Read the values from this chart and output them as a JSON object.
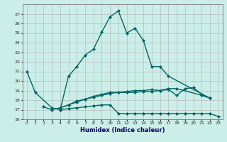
{
  "xlabel": "Humidex (Indice chaleur)",
  "ylim_min": 16,
  "ylim_max": 28,
  "ytick_min": 16,
  "ytick_max": 27,
  "bg_color": "#cceee8",
  "grid_color": "#b0b0b0",
  "line_color": "#006666",
  "line_width": 1.0,
  "marker": "D",
  "marker_size": 2.0,
  "main_x": [
    0,
    1,
    3,
    4,
    5,
    6,
    7,
    8,
    9,
    10,
    11,
    12,
    13,
    14,
    15,
    16,
    17,
    22
  ],
  "main_y": [
    21,
    18.8,
    17.2,
    17.0,
    20.5,
    21.5,
    22.7,
    23.3,
    25.1,
    26.7,
    27.3,
    25.0,
    25.5,
    24.2,
    21.5,
    21.5,
    20.5,
    18.2
  ],
  "line2_x": [
    2,
    3,
    4,
    5,
    6,
    7,
    8,
    9,
    10,
    11,
    12,
    13,
    14,
    15,
    16,
    17,
    18,
    21,
    22
  ],
  "line2_y": [
    17.3,
    17.0,
    17.2,
    17.5,
    17.8,
    18.1,
    18.3,
    18.5,
    18.7,
    18.8,
    18.8,
    18.8,
    18.9,
    18.9,
    19.0,
    19.2,
    19.2,
    18.5,
    18.2
  ],
  "line3_x": [
    4,
    5,
    6,
    7,
    8,
    9,
    10,
    11,
    12,
    13,
    14,
    15,
    16,
    17,
    18,
    19,
    20,
    21,
    22,
    23
  ],
  "line3_y": [
    17.0,
    17.1,
    17.2,
    17.3,
    17.4,
    17.5,
    17.5,
    16.6,
    16.6,
    16.6,
    16.6,
    16.6,
    16.6,
    16.6,
    16.6,
    16.6,
    16.6,
    16.6,
    16.6,
    16.3
  ],
  "line4_x": [
    4,
    5,
    6,
    7,
    8,
    9,
    10,
    11,
    12,
    13,
    14,
    15,
    16,
    17,
    18,
    19,
    20,
    21,
    22
  ],
  "line4_y": [
    17.2,
    17.5,
    17.9,
    18.1,
    18.4,
    18.6,
    18.8,
    18.8,
    18.9,
    19.0,
    19.0,
    19.1,
    19.0,
    19.1,
    18.5,
    19.2,
    19.3,
    18.6,
    18.2
  ]
}
